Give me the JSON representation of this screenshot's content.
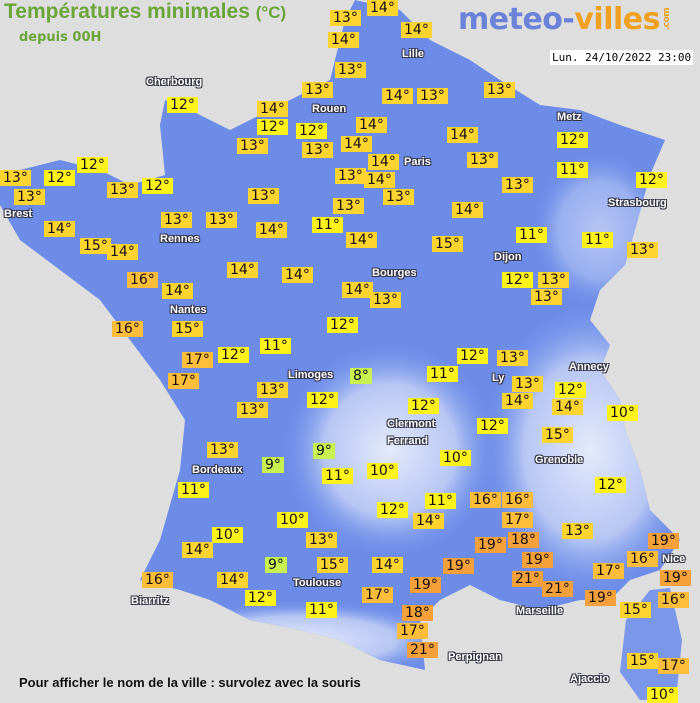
{
  "header": {
    "title": "Températures minimales",
    "title_unit": "(°C)",
    "subtitle": "depuis 00H",
    "logo": {
      "part1": "meteo-",
      "part2": "villes",
      "part3": ".com"
    },
    "datetime": "Lun. 24/10/2022 23:00"
  },
  "cities": [
    {
      "name": "Cherbourg"
    },
    {
      "name": "Lille"
    },
    {
      "name": "Rouen"
    },
    {
      "name": "Paris"
    },
    {
      "name": "Metz"
    },
    {
      "name": "Strasbourg"
    },
    {
      "name": "Brest"
    },
    {
      "name": "Rennes"
    },
    {
      "name": "Nantes"
    },
    {
      "name": "Bourges"
    },
    {
      "name": "Dijon"
    },
    {
      "name": "Limoges"
    },
    {
      "name": "Annecy"
    },
    {
      "name": "Ly"
    },
    {
      "name": "Clermont"
    },
    {
      "name": "Ferrand"
    },
    {
      "name": "Grenoble"
    },
    {
      "name": "Bordeaux"
    },
    {
      "name": "Toulouse"
    },
    {
      "name": "Biarritz"
    },
    {
      "name": "Marseille"
    },
    {
      "name": "Nice"
    },
    {
      "name": "Perpignan"
    },
    {
      "name": "Ajaccio"
    }
  ],
  "temps": [
    {
      "value": "13°"
    },
    {
      "value": "14°"
    },
    {
      "value": "14°"
    },
    {
      "value": "14°"
    },
    {
      "value": "13°"
    },
    {
      "value": "13°"
    },
    {
      "value": "14°"
    },
    {
      "value": "12°"
    },
    {
      "value": "12°"
    },
    {
      "value": "13°"
    },
    {
      "value": "13°"
    },
    {
      "value": "14°"
    },
    {
      "value": "14°"
    },
    {
      "value": "13°"
    },
    {
      "value": "13°"
    },
    {
      "value": "14°"
    },
    {
      "value": "14°"
    },
    {
      "value": "14°"
    },
    {
      "value": "13°"
    },
    {
      "value": "13°"
    },
    {
      "value": "14°"
    },
    {
      "value": "13°"
    },
    {
      "value": "13°"
    },
    {
      "value": "12°"
    },
    {
      "value": "11°"
    },
    {
      "value": "12°"
    },
    {
      "value": "14°"
    },
    {
      "value": "13°"
    },
    {
      "value": "11°"
    },
    {
      "value": "14°"
    },
    {
      "value": "15°"
    },
    {
      "value": "11°"
    },
    {
      "value": "11°"
    },
    {
      "value": "13°"
    },
    {
      "value": "12°"
    },
    {
      "value": "13°"
    },
    {
      "value": "12°"
    },
    {
      "value": "13°"
    },
    {
      "value": "13°"
    },
    {
      "value": "12°"
    },
    {
      "value": "13°"
    },
    {
      "value": "12°"
    },
    {
      "value": "14°"
    },
    {
      "value": "13°"
    },
    {
      "value": "13°"
    },
    {
      "value": "14°"
    },
    {
      "value": "15°"
    },
    {
      "value": "14°"
    },
    {
      "value": "14°"
    },
    {
      "value": "14°"
    },
    {
      "value": "16°"
    },
    {
      "value": "14°"
    },
    {
      "value": "14°"
    },
    {
      "value": "13°"
    },
    {
      "value": "12°"
    },
    {
      "value": "13°"
    },
    {
      "value": "13°"
    },
    {
      "value": "16°"
    },
    {
      "value": "15°"
    },
    {
      "value": "12°"
    },
    {
      "value": "11°"
    },
    {
      "value": "12°"
    },
    {
      "value": "17°"
    },
    {
      "value": "17°"
    },
    {
      "value": "13°"
    },
    {
      "value": "13°"
    },
    {
      "value": "8°"
    },
    {
      "value": "12°"
    },
    {
      "value": "13°"
    },
    {
      "value": "9°"
    },
    {
      "value": "9°"
    },
    {
      "value": "11°"
    },
    {
      "value": "10°"
    },
    {
      "value": "11°"
    },
    {
      "value": "10°"
    },
    {
      "value": "10°"
    },
    {
      "value": "14°"
    },
    {
      "value": "13°"
    },
    {
      "value": "9°"
    },
    {
      "value": "15°"
    },
    {
      "value": "14°"
    },
    {
      "value": "12°"
    },
    {
      "value": "16°"
    },
    {
      "value": "14°"
    },
    {
      "value": "12°"
    },
    {
      "value": "11°"
    },
    {
      "value": "17°"
    },
    {
      "value": "12°"
    },
    {
      "value": "13°"
    },
    {
      "value": "11°"
    },
    {
      "value": "13°"
    },
    {
      "value": "14°"
    },
    {
      "value": "12°"
    },
    {
      "value": "14°"
    },
    {
      "value": "10°"
    },
    {
      "value": "12°"
    },
    {
      "value": "12°"
    },
    {
      "value": "15°"
    },
    {
      "value": "10°"
    },
    {
      "value": "12°"
    },
    {
      "value": "11°"
    },
    {
      "value": "16°"
    },
    {
      "value": "16°"
    },
    {
      "value": "14°"
    },
    {
      "value": "17°"
    },
    {
      "value": "13°"
    },
    {
      "value": "19°"
    },
    {
      "value": "18°"
    },
    {
      "value": "19°"
    },
    {
      "value": "16°"
    },
    {
      "value": "19°"
    },
    {
      "value": "19°"
    },
    {
      "value": "21°"
    },
    {
      "value": "19°"
    },
    {
      "value": "17°"
    },
    {
      "value": "21°"
    },
    {
      "value": "19°"
    },
    {
      "value": "19°"
    },
    {
      "value": "15°"
    },
    {
      "value": "16°"
    },
    {
      "value": "18°"
    },
    {
      "value": "17°"
    },
    {
      "value": "21°"
    },
    {
      "value": "15°"
    },
    {
      "value": "17°"
    },
    {
      "value": "10°"
    }
  ],
  "colors": {
    "background": "#dedede",
    "land": "#6c8ce8",
    "highland": "#dfe6fa",
    "temp_8_9": "#c8f050",
    "temp_10_12": "#fff21a",
    "temp_13_15": "#ffd42e",
    "temp_16_17": "#ffbd3a",
    "temp_18_21": "#f5a03a"
  },
  "footer": "Pour afficher le nom de la ville : survolez avec la souris"
}
